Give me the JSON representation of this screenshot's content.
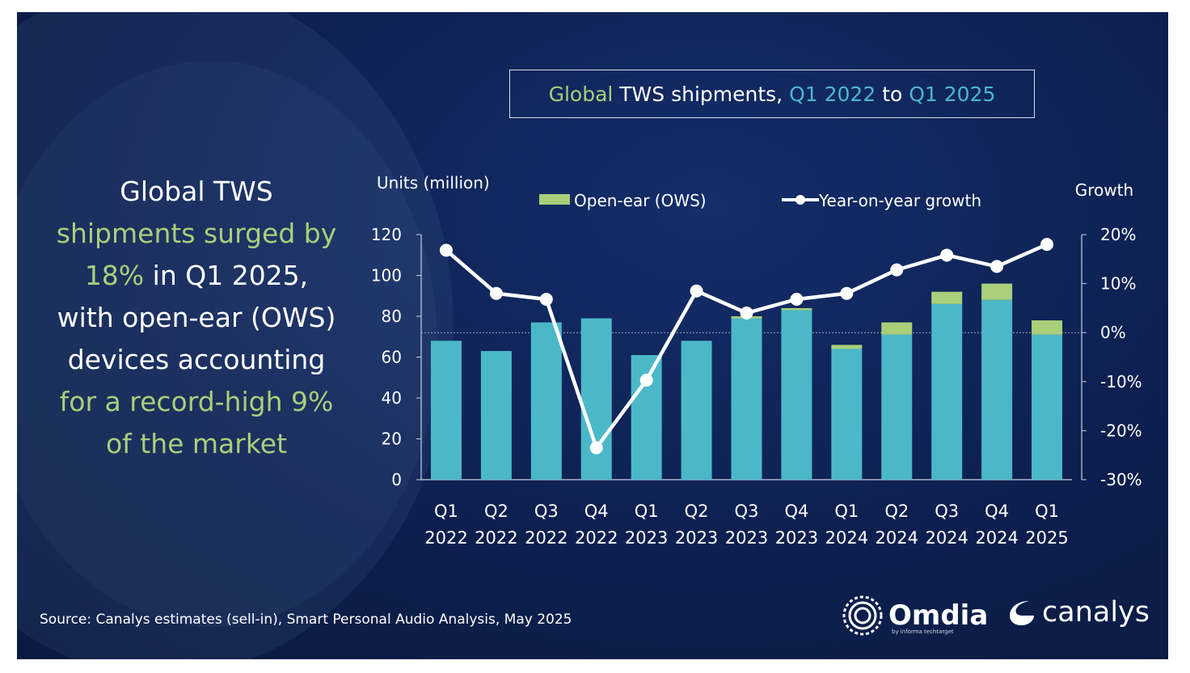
{
  "header": {
    "title_parts": [
      "Global",
      " TWS shipments, ",
      "Q1 2022",
      " to ",
      "Q1 2025"
    ]
  },
  "headline": {
    "line1": "Global TWS",
    "line2": "shipments surged by",
    "line3_green": "18%",
    "line3_rest": " in Q1 2025,",
    "line4": "with open-ear (OWS)",
    "line5": "devices accounting",
    "line6": "for a record-high 9%",
    "line7": "of the market"
  },
  "footer": {
    "source": "Source: Canalys estimates (sell-in), Smart Personal Audio Analysis, May 2025"
  },
  "logos": {
    "omdia": "Omdia",
    "omdia_sub": "by informa techtarget",
    "canalys": "canalys"
  },
  "colors": {
    "tws_bar": "#4bb8c8",
    "ows_bar": "#a9cf7a",
    "growth_line": "#ffffff",
    "accent_green": "#a9cf7a",
    "accent_teal": "#4bb8c8"
  },
  "chart_data": {
    "type": "bar",
    "stacked": true,
    "left_axis_label": "Units (million)",
    "right_axis_label": "Growth",
    "categories": [
      [
        "Q1",
        "2022"
      ],
      [
        "Q2",
        "2022"
      ],
      [
        "Q3",
        "2022"
      ],
      [
        "Q4",
        "2022"
      ],
      [
        "Q1",
        "2023"
      ],
      [
        "Q2",
        "2023"
      ],
      [
        "Q3",
        "2023"
      ],
      [
        "Q4",
        "2023"
      ],
      [
        "Q1",
        "2024"
      ],
      [
        "Q2",
        "2024"
      ],
      [
        "Q3",
        "2024"
      ],
      [
        "Q4",
        "2024"
      ],
      [
        "Q1",
        "2025"
      ]
    ],
    "ylim": [
      0,
      120
    ],
    "yticks": [
      "0",
      "20",
      "40",
      "60",
      "80",
      "100",
      "120"
    ],
    "y2lim": [
      -30,
      20
    ],
    "y2ticks": [
      "-30%",
      "-20%",
      "-10%",
      "0%",
      "10%",
      "20%"
    ],
    "series": [
      {
        "values": [
          68,
          63,
          77,
          79,
          61,
          68,
          79,
          83,
          64,
          71,
          86,
          88,
          71
        ]
      },
      {
        "name": "Open-ear (OWS)",
        "values": [
          0,
          0,
          0,
          0,
          0,
          0,
          1,
          1,
          2,
          6,
          6,
          8,
          7
        ]
      }
    ],
    "line_series": {
      "name": "Year-on-year growth",
      "axis": "right",
      "values": [
        16.8,
        8.0,
        6.8,
        -23.5,
        -9.7,
        8.5,
        4.0,
        6.8,
        8.0,
        12.8,
        15.8,
        13.5,
        18.0
      ]
    }
  }
}
